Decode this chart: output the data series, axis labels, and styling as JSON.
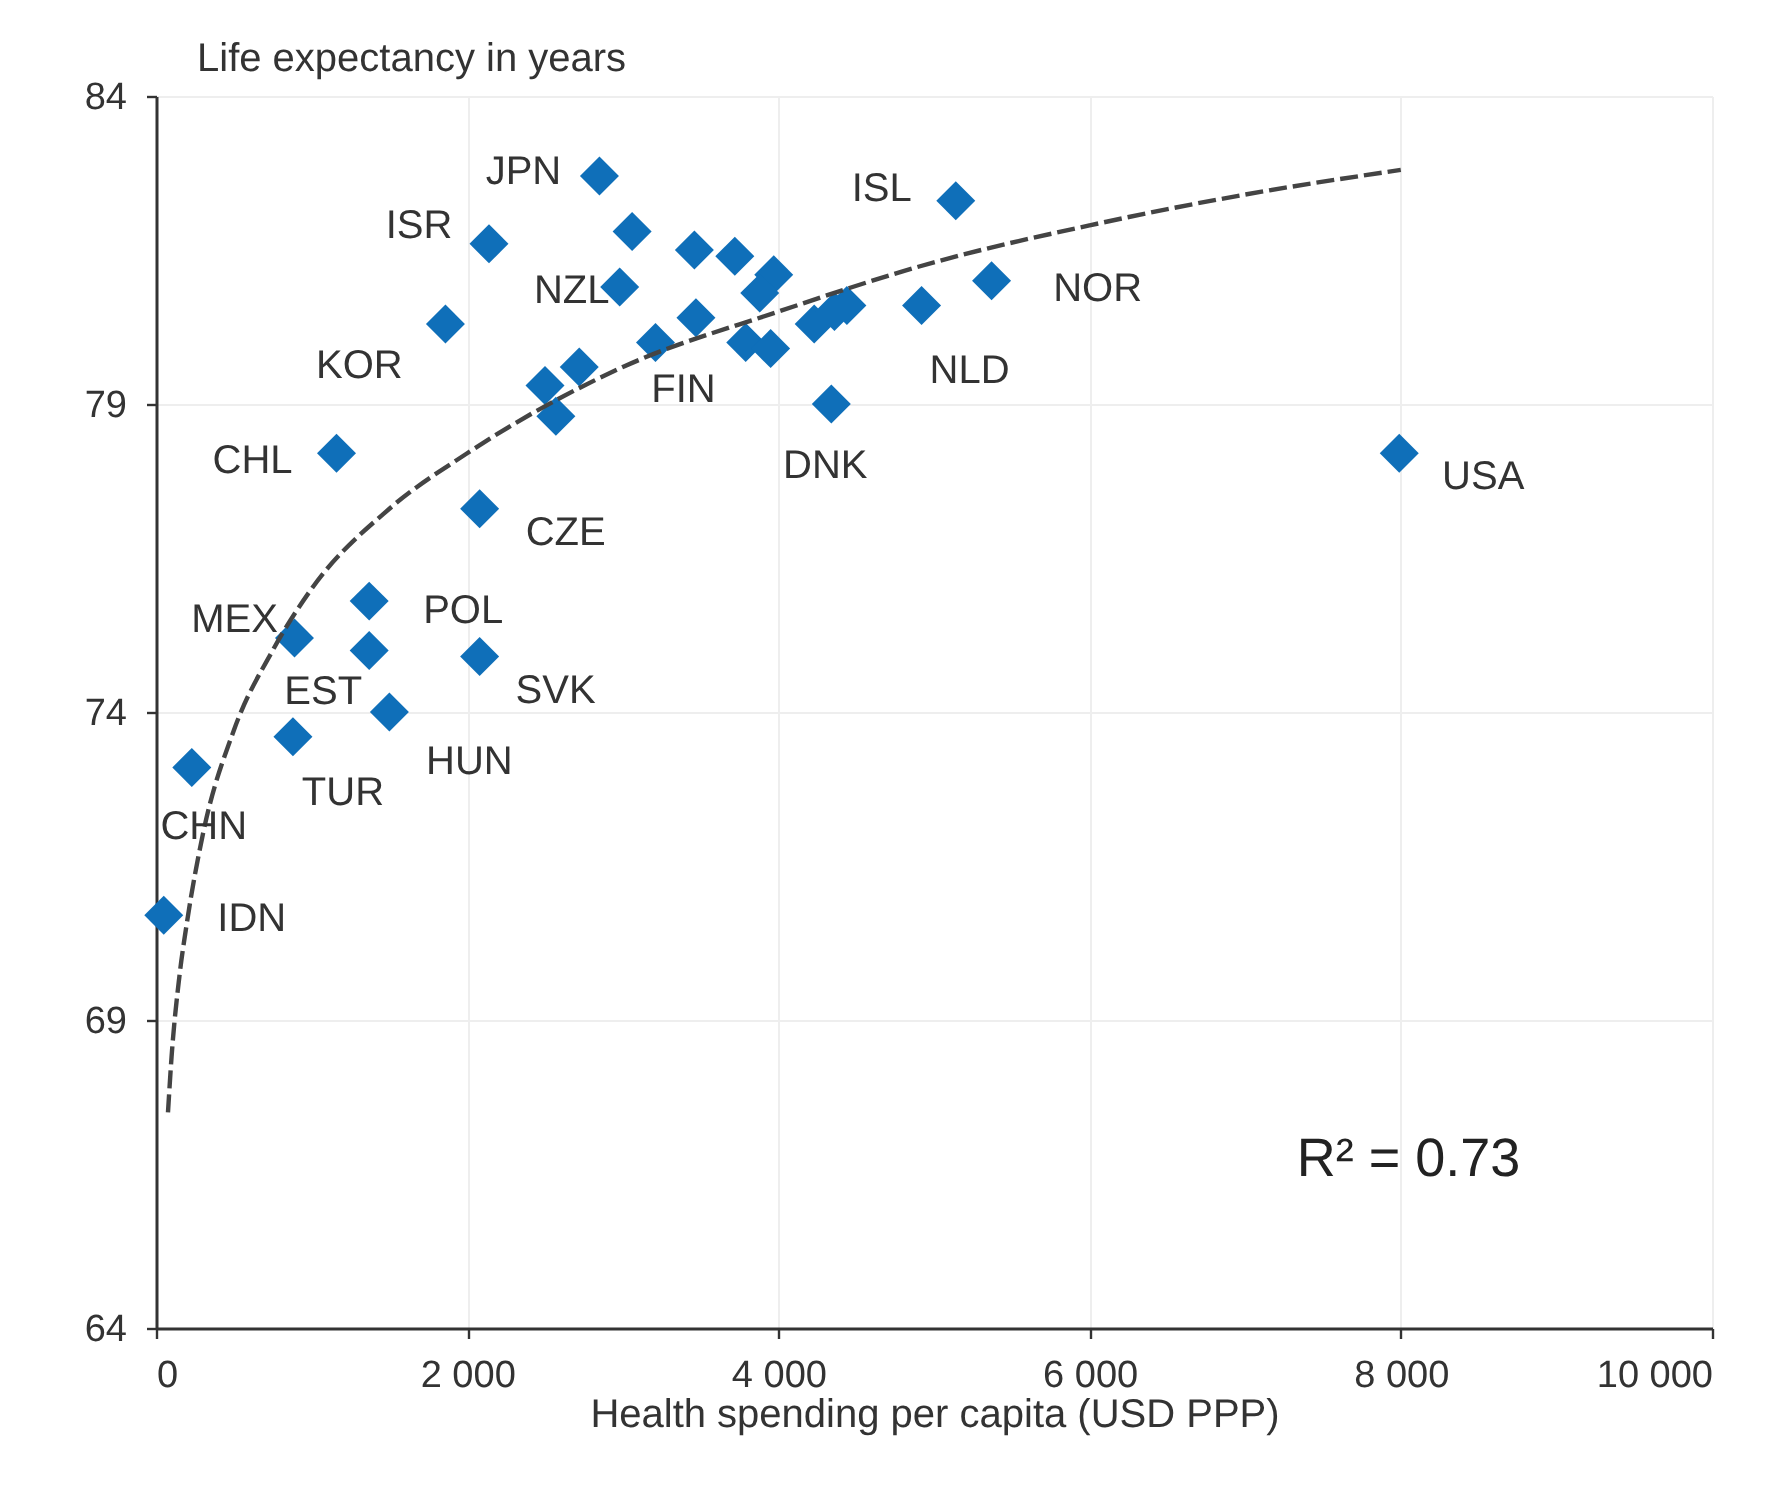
{
  "chart_data": {
    "type": "scatter",
    "xlabel": "Health spending per capita (USD PPP)",
    "ylabel": "Life expectancy in years",
    "xlim": [
      0,
      10000
    ],
    "xticks": [
      0,
      {
        "value": 2000,
        "label": "2 000"
      },
      {
        "value": 4000,
        "label": "4 000"
      },
      {
        "value": 6000,
        "label": "6 000"
      },
      {
        "value": 8000,
        "label": "8 000"
      },
      {
        "value": 10000,
        "label": "10 000"
      }
    ],
    "ylim": [
      64,
      84
    ],
    "yticks": [
      64,
      69,
      74,
      79,
      84
    ],
    "grid": true,
    "series": [
      {
        "type": "scatter",
        "color": "#0f6fb9",
        "marker": "diamond",
        "x": [
          2850,
          3060,
          2140,
          3460,
          3720,
          3970,
          3880,
          2980,
          3470,
          3210,
          3790,
          3950,
          4230,
          4360,
          4440,
          4920,
          5140,
          5370,
          4340,
          7990,
          1860,
          2500,
          2720,
          2570,
          1160,
          2080,
          890,
          1370,
          1370,
          2080,
          1500,
          880,
          230,
          50
        ],
        "values": [
          82.7,
          81.8,
          81.6,
          81.5,
          81.4,
          81.1,
          80.8,
          80.9,
          80.4,
          80.0,
          80.0,
          79.9,
          80.3,
          80.5,
          80.6,
          80.6,
          82.3,
          81.0,
          79.0,
          78.2,
          80.3,
          79.3,
          79.6,
          78.8,
          78.2,
          77.3,
          75.2,
          75.8,
          75.0,
          74.9,
          74.0,
          73.6,
          73.1,
          70.7
        ]
      },
      {
        "type": "line",
        "color": "#444444",
        "marker": "none",
        "line_style": "dashed",
        "x": [
          77,
          100,
          150,
          200,
          300,
          500,
          750,
          1000,
          1500,
          2000,
          3000,
          4000,
          5000,
          6000,
          7000,
          8000
        ],
        "values": [
          67.5,
          68.4,
          69.7,
          70.6,
          72.0,
          73.7,
          75.0,
          76.0,
          77.3,
          78.2,
          79.6,
          80.5,
          81.3,
          81.9,
          82.4,
          82.8
        ]
      }
    ],
    "annotations": [
      {
        "text": "JPN",
        "x": 2850,
        "y": 82.7
      },
      {
        "text": "ISR",
        "x": 2140,
        "y": 81.6
      },
      {
        "text": "NZL",
        "x": 2980,
        "y": 80.9
      },
      {
        "text": "KOR",
        "x": 1860,
        "y": 80.3
      },
      {
        "text": "CHL",
        "x": 1160,
        "y": 78.2
      },
      {
        "text": "CZE",
        "x": 2080,
        "y": 77.3
      },
      {
        "text": "MEX",
        "x": 890,
        "y": 75.2
      },
      {
        "text": "POL",
        "x": 1370,
        "y": 75.8
      },
      {
        "text": "EST",
        "x": 1370,
        "y": 75.0
      },
      {
        "text": "SVK",
        "x": 2080,
        "y": 74.9
      },
      {
        "text": "HUN",
        "x": 1500,
        "y": 74.0
      },
      {
        "text": "TUR",
        "x": 880,
        "y": 73.6
      },
      {
        "text": "CHN",
        "x": 230,
        "y": 73.1
      },
      {
        "text": "IDN",
        "x": 50,
        "y": 70.7
      },
      {
        "text": "FIN",
        "x": 3210,
        "y": 80.0
      },
      {
        "text": "ISL",
        "x": 5140,
        "y": 82.3
      },
      {
        "text": "NOR",
        "x": 5370,
        "y": 81.0
      },
      {
        "text": "NLD",
        "x": 4920,
        "y": 80.6
      },
      {
        "text": "DNK",
        "x": 4340,
        "y": 79.0
      },
      {
        "text": "USA",
        "x": 7990,
        "y": 78.2
      },
      "R² = 0.73"
    ]
  }
}
